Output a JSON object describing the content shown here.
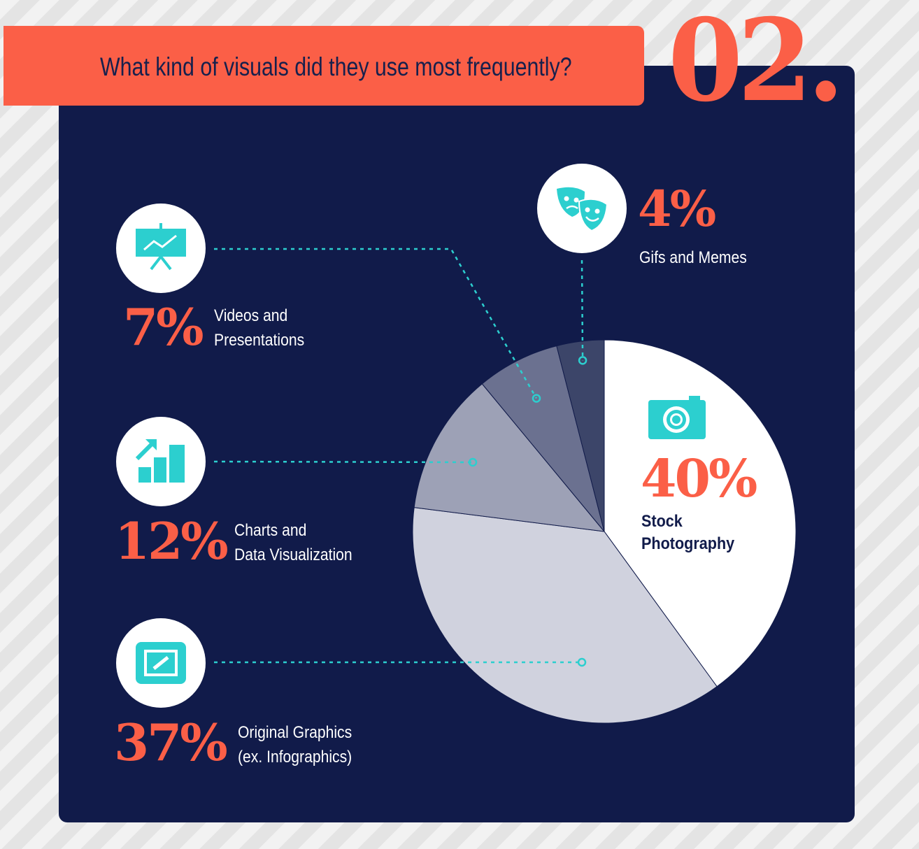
{
  "header": {
    "title": "What kind of visuals did they use most frequently?",
    "step": "02."
  },
  "colors": {
    "background": "#111b4a",
    "accent": "#fb5f47",
    "icon": "#2ccfcf"
  },
  "chart_data": {
    "type": "pie",
    "unit": "%",
    "slices": [
      {
        "label": "Stock Photography",
        "value": 40,
        "display": "40%",
        "line1": "Stock",
        "line2": "Photography",
        "color": "#ffffff",
        "icon": "camera-icon"
      },
      {
        "label": "Original Graphics (ex. Infographics)",
        "value": 37,
        "display": "37%",
        "line1": "Original Graphics",
        "line2": "(ex. Infographics)",
        "color": "#d0d2de",
        "icon": "picture-frame-icon"
      },
      {
        "label": "Charts and Data Visualization",
        "value": 12,
        "display": "12%",
        "line1": "Charts and",
        "line2": "Data Visualization",
        "color": "#9da1b6",
        "icon": "growth-chart-icon"
      },
      {
        "label": "Videos and Presentations",
        "value": 7,
        "display": "7%",
        "line1": "Videos and",
        "line2": "Presentations",
        "color": "#6b7190",
        "icon": "presentation-board-icon"
      },
      {
        "label": "Gifs and Memes",
        "value": 4,
        "display": "4%",
        "line1": "Gifs and Memes",
        "line2": "",
        "color": "#3c4569",
        "icon": "theater-masks-icon"
      }
    ]
  }
}
